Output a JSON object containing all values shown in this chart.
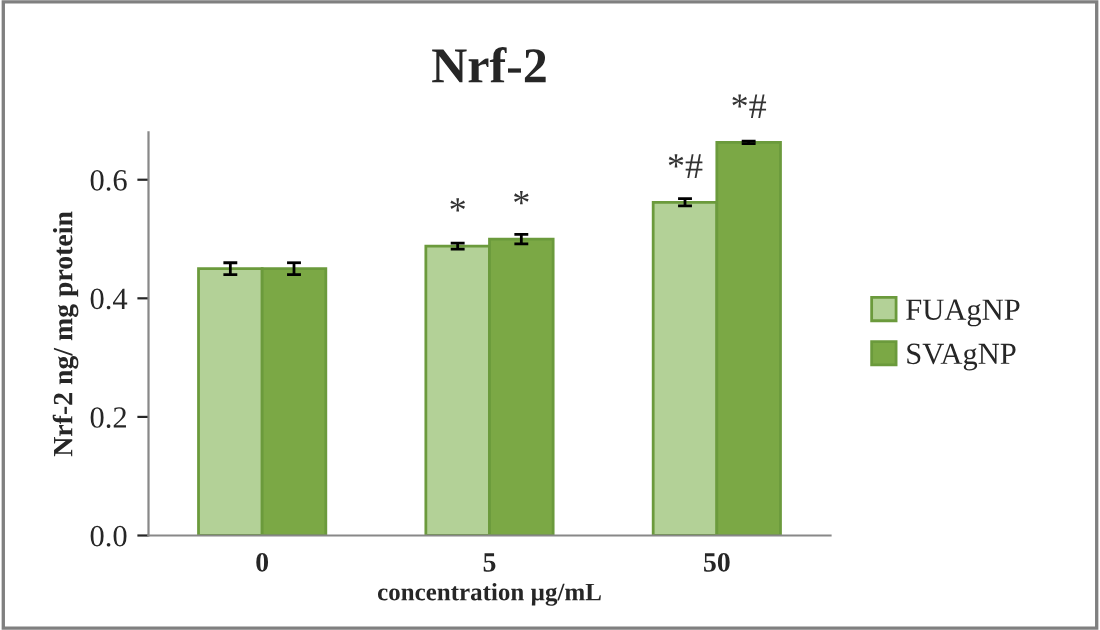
{
  "chart_data": {
    "type": "bar",
    "title": "Nrf-2",
    "xlabel": "concentration µg/mL",
    "ylabel": "Nrf-2 ng/ mg protein",
    "categories": [
      "0",
      "5",
      "50"
    ],
    "series": [
      {
        "name": "FUAgNP",
        "color": "#b3d197",
        "values": [
          0.45,
          0.488,
          0.562
        ],
        "errors": [
          0.01,
          0.005,
          0.006
        ]
      },
      {
        "name": "SVAgNP",
        "color": "#7ba845",
        "values": [
          0.45,
          0.5,
          0.663
        ],
        "errors": [
          0.01,
          0.008,
          0.002
        ]
      }
    ],
    "annotations": [
      {
        "text": "*",
        "x": "5",
        "y": 0.488
      },
      {
        "text": "*",
        "x": "5",
        "y": 0.5
      },
      {
        "text": "*#",
        "x": "50",
        "y": 0.562
      },
      {
        "text": "*#",
        "x": "50",
        "y": 0.663
      }
    ],
    "ylim": [
      0,
      0.68
    ],
    "yticks": [
      {
        "value": 0,
        "label": "0.0"
      },
      {
        "value": 0.2,
        "label": "0.2"
      },
      {
        "value": 0.4,
        "label": "0.4"
      },
      {
        "value": 0.6,
        "label": "0.6"
      }
    ],
    "grid": false,
    "legend": "right"
  }
}
